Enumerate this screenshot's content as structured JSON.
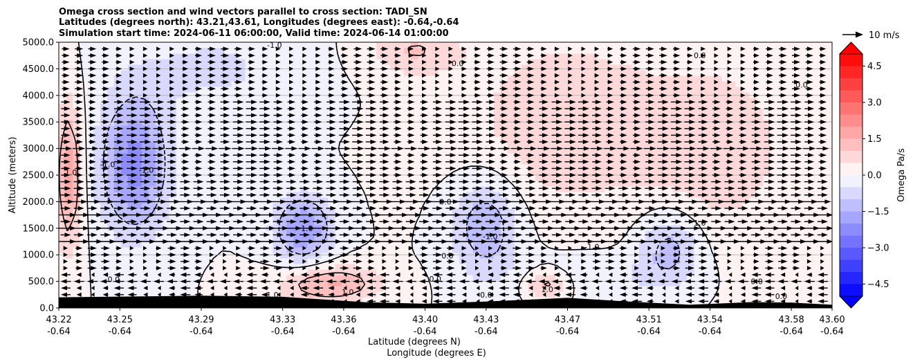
{
  "chart_data": {
    "type": "heatmap",
    "title_lines": [
      "Omega cross section and wind vectors parallel to cross section: TADI_SN",
      "Latitudes (degrees north): 43.21,43.61, Longitudes (degrees east): -0.64,-0.64",
      "Simulation start time: 2024-06-11 06:00:00, Valid time: 2024-06-14 01:00:00"
    ],
    "xlabel_lines": [
      "Latitude (degrees N)",
      "Longitude (degrees E)"
    ],
    "ylabel": "Altitude (meters)",
    "xlim": [
      43.22,
      43.6
    ],
    "ylim": [
      0,
      5000
    ],
    "x_ticks": [
      {
        "lat": "43.22",
        "lon": "-0.64"
      },
      {
        "lat": "43.25",
        "lon": "-0.64"
      },
      {
        "lat": "43.29",
        "lon": "-0.64"
      },
      {
        "lat": "43.33",
        "lon": "-0.64"
      },
      {
        "lat": "43.36",
        "lon": "-0.64"
      },
      {
        "lat": "43.40",
        "lon": "-0.64"
      },
      {
        "lat": "43.43",
        "lon": "-0.64"
      },
      {
        "lat": "43.47",
        "lon": "-0.64"
      },
      {
        "lat": "43.51",
        "lon": "-0.64"
      },
      {
        "lat": "43.54",
        "lon": "-0.64"
      },
      {
        "lat": "43.58",
        "lon": "-0.64"
      },
      {
        "lat": "43.60",
        "lon": "-0.64"
      }
    ],
    "y_ticks": [
      "0.0",
      "500.0",
      "1000.0",
      "1500.0",
      "2000.0",
      "2500.0",
      "3000.0",
      "3500.0",
      "4000.0",
      "4500.0",
      "5000.0"
    ],
    "grid": "horizontal",
    "colorbar": {
      "label": "Omega Pa/s",
      "range": [
        -5,
        5
      ],
      "colormap": "blue-white-red",
      "extend": "both",
      "tick_labels": [
        "4.5",
        "3.0",
        "1.5",
        "0.0",
        "−1.5",
        "−3.0",
        "−4.5"
      ],
      "low_color": "#0000ff",
      "high_color": "#ff0000"
    },
    "quiver_key": {
      "label": "10 m/s"
    },
    "contour_levels": [
      -1.0,
      0.0,
      1.0
    ],
    "contour_labels": [
      {
        "text": "-1.0",
        "lat": 43.263,
        "alt": 2600
      },
      {
        "text": "-1.0",
        "lat": 43.244,
        "alt": 2700
      },
      {
        "text": "1.0",
        "lat": 43.226,
        "alt": 2550
      },
      {
        "text": "1.0",
        "lat": 43.342,
        "alt": 1500
      },
      {
        "text": "0.0",
        "lat": 43.247,
        "alt": 540
      },
      {
        "text": "1.0",
        "lat": 43.325,
        "alt": 250
      },
      {
        "text": "1.0",
        "lat": 43.362,
        "alt": 300
      },
      {
        "text": "0.0",
        "lat": 43.41,
        "alt": 2000
      },
      {
        "text": "0.0",
        "lat": 43.416,
        "alt": 4600
      },
      {
        "text": "0.0",
        "lat": 43.411,
        "alt": 980
      },
      {
        "text": "0.0",
        "lat": 43.405,
        "alt": 550
      },
      {
        "text": "-1.0",
        "lat": 43.432,
        "alt": 1350
      },
      {
        "text": "0.0",
        "lat": 43.43,
        "alt": 250
      },
      {
        "text": "1.0",
        "lat": 43.46,
        "alt": 350
      },
      {
        "text": "0.0",
        "lat": 43.535,
        "alt": 4750
      },
      {
        "text": "0.0",
        "lat": 43.585,
        "alt": 4200
      },
      {
        "text": "-1.0",
        "lat": 43.482,
        "alt": 1150
      },
      {
        "text": "1.0",
        "lat": 43.535,
        "alt": 1600
      },
      {
        "text": "0.0",
        "lat": 43.563,
        "alt": 500
      },
      {
        "text": "0.0",
        "lat": 43.575,
        "alt": 220
      },
      {
        "text": "-1.0",
        "lat": 43.326,
        "alt": 4950
      }
    ],
    "omega_centers": [
      {
        "lat": 43.257,
        "alt": 2700,
        "value": -2.2,
        "sx": 0.012,
        "sy": 900
      },
      {
        "lat": 43.225,
        "alt": 2500,
        "value": 1.8,
        "sx": 0.0045,
        "sy": 1000
      },
      {
        "lat": 43.34,
        "alt": 1500,
        "value": -2.0,
        "sx": 0.01,
        "sy": 450
      },
      {
        "lat": 43.43,
        "alt": 1550,
        "value": -1.5,
        "sx": 0.012,
        "sy": 650
      },
      {
        "lat": 43.52,
        "alt": 1150,
        "value": -1.3,
        "sx": 0.011,
        "sy": 500
      },
      {
        "lat": 43.353,
        "alt": 450,
        "value": 1.6,
        "sx": 0.018,
        "sy": 250
      },
      {
        "lat": 43.46,
        "alt": 460,
        "value": 1.4,
        "sx": 0.008,
        "sy": 200
      },
      {
        "lat": 43.395,
        "alt": 4850,
        "value": 1.0,
        "sx": 0.016,
        "sy": 350
      },
      {
        "lat": 43.47,
        "alt": 3500,
        "value": 0.9,
        "sx": 0.035,
        "sy": 1200
      },
      {
        "lat": 43.545,
        "alt": 3000,
        "value": 0.8,
        "sx": 0.025,
        "sy": 1200
      },
      {
        "lat": 43.295,
        "alt": 4500,
        "value": -0.6,
        "sx": 0.03,
        "sy": 600
      },
      {
        "lat": 43.48,
        "alt": 600,
        "value": -0.5,
        "sx": 0.03,
        "sy": 300
      }
    ],
    "terrain_height": [
      {
        "lat": 43.22,
        "alt": 200
      },
      {
        "lat": 43.29,
        "alt": 230
      },
      {
        "lat": 43.33,
        "alt": 210
      },
      {
        "lat": 43.37,
        "alt": 110
      },
      {
        "lat": 43.4,
        "alt": 80
      },
      {
        "lat": 43.43,
        "alt": 120
      },
      {
        "lat": 43.47,
        "alt": 190
      },
      {
        "lat": 43.5,
        "alt": 120
      },
      {
        "lat": 43.53,
        "alt": 60
      },
      {
        "lat": 43.56,
        "alt": 110
      },
      {
        "lat": 43.58,
        "alt": 100
      },
      {
        "lat": 43.6,
        "alt": 60
      }
    ],
    "wind_rows": [
      {
        "alt": 1250,
        "speed_ms": 10,
        "dir": "S-N"
      },
      {
        "alt": 1500,
        "speed_ms": 10,
        "dir": "S-N"
      },
      {
        "alt": 1750,
        "speed_ms": 10,
        "dir": "S-N"
      },
      {
        "alt": 2000,
        "speed_ms": 8,
        "dir": "S-N"
      },
      {
        "alt": 3000,
        "speed_ms": 6,
        "dir": "S-N"
      },
      {
        "alt": 500,
        "speed_ms": -5,
        "dir": "N-S"
      }
    ]
  }
}
